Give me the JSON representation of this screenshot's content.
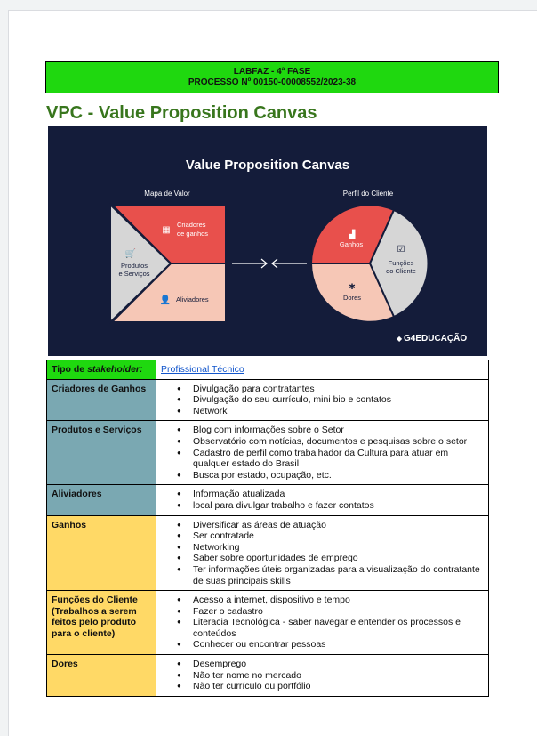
{
  "header": {
    "line1": "LABFAZ - 4ª FASE",
    "line2": "PROCESSO Nº 00150-00008552/2023-38"
  },
  "title": "VPC - Value Proposition Canvas",
  "banner": {
    "title": "Value Proposition Canvas",
    "left_caption": "Mapa de Valor",
    "right_caption": "Perfil do Cliente",
    "gain_creators": [
      "Criadores",
      "de ganhos"
    ],
    "products": [
      "Produtos",
      "e Serviços"
    ],
    "relievers": "Aliviadores",
    "gains": "Ganhos",
    "jobs": [
      "Funções",
      "do Cliente"
    ],
    "pains": "Dores",
    "brand": "G4EDUCAÇÃO",
    "colors": {
      "bg": "#141c3a",
      "red": "#e8504c",
      "pink": "#f6c7b6",
      "gray": "#d6d6d6"
    }
  },
  "table": {
    "stakeholder": {
      "label_prefix": "Tipo de ",
      "label_em": "stakeholder:",
      "value": "Profissional Técnico"
    },
    "rows": [
      {
        "label": "Criadores de Ganhos",
        "color": "teal",
        "items": [
          "Divulgação para contratantes",
          "Divulgação do seu currículo, mini bio e contatos",
          "Network"
        ]
      },
      {
        "label": "Produtos e Serviços",
        "color": "teal",
        "items": [
          "Blog com informações sobre o Setor",
          "Observatório com notícias, documentos e pesquisas sobre o setor",
          "Cadastro de perfil como trabalhador da Cultura para atuar em qualquer estado do Brasil",
          "Busca por estado, ocupação, etc."
        ]
      },
      {
        "label": "Aliviadores",
        "color": "teal",
        "items": [
          "Informação atualizada",
          "local para divulgar trabalho e fazer contatos"
        ]
      },
      {
        "label": "Ganhos",
        "color": "yellow",
        "items": [
          "Diversificar as áreas de atuação",
          "Ser contratade",
          "Networking",
          "Saber sobre oportunidades de emprego",
          "Ter informações úteis organizadas para a visualização do contratante de suas principais skills"
        ]
      },
      {
        "label": "Funções do Cliente (Trabalhos a serem feitos pelo produto para o cliente)",
        "color": "yellow",
        "items": [
          "Acesso a internet, dispositivo e tempo",
          "Fazer o cadastro",
          "Literacia Tecnológica - saber navegar e entender os processos e conteúdos",
          "Conhecer ou encontrar pessoas"
        ]
      },
      {
        "label": "Dores",
        "color": "yellow",
        "items": [
          "Desemprego",
          "Não ter nome no mercado",
          "Não ter currículo ou portfólio"
        ]
      }
    ]
  }
}
